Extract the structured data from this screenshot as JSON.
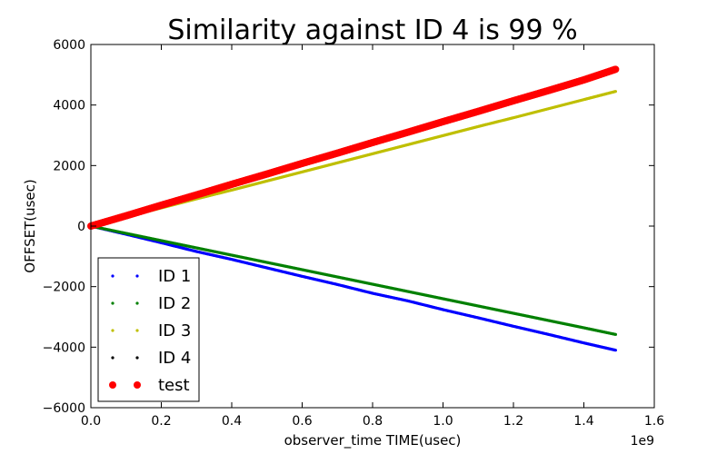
{
  "chart_data": {
    "type": "scatter",
    "title": "Similarity against ID 4 is 99 %",
    "xlabel": "observer_time TIME(usec)",
    "ylabel": "OFFSET(usec)",
    "x_offset_label": "1e9",
    "xlim": [
      0.0,
      1.6
    ],
    "ylim": [
      -6000,
      6000
    ],
    "xticks": [
      0.0,
      0.2,
      0.4,
      0.6,
      0.8,
      1.0,
      1.2,
      1.4,
      1.6
    ],
    "xtick_labels": [
      "0.0",
      "0.2",
      "0.4",
      "0.6",
      "0.8",
      "1.0",
      "1.2",
      "1.4",
      "1.6"
    ],
    "yticks": [
      -6000,
      -4000,
      -2000,
      0,
      2000,
      4000,
      6000
    ],
    "ytick_labels": [
      "−6000",
      "−4000",
      "−2000",
      "0",
      "2000",
      "4000",
      "6000"
    ],
    "grid": false,
    "legend_position": "lower-left",
    "series": [
      {
        "name": "ID 1",
        "color": "#0000ff",
        "marker": "small-dot",
        "x": [
          0.0,
          0.1,
          0.2,
          0.3,
          0.4,
          0.5,
          0.6,
          0.7,
          0.8,
          0.9,
          1.0,
          1.1,
          1.2,
          1.3,
          1.4,
          1.49
        ],
        "y": [
          0,
          -270,
          -550,
          -840,
          -1100,
          -1380,
          -1660,
          -1930,
          -2220,
          -2470,
          -2760,
          -3030,
          -3310,
          -3580,
          -3860,
          -4100
        ]
      },
      {
        "name": "ID 2",
        "color": "#008000",
        "marker": "small-dot",
        "x": [
          0.0,
          0.1,
          0.2,
          0.3,
          0.4,
          0.5,
          0.6,
          0.7,
          0.8,
          0.9,
          1.0,
          1.1,
          1.2,
          1.3,
          1.4,
          1.49
        ],
        "y": [
          0,
          -240,
          -480,
          -720,
          -960,
          -1200,
          -1440,
          -1680,
          -1920,
          -2160,
          -2400,
          -2640,
          -2880,
          -3120,
          -3360,
          -3580
        ]
      },
      {
        "name": "ID 3",
        "color": "#bfbf00",
        "marker": "small-dot",
        "x": [
          0.0,
          0.1,
          0.2,
          0.3,
          0.4,
          0.5,
          0.6,
          0.7,
          0.8,
          0.9,
          1.0,
          1.1,
          1.2,
          1.3,
          1.4,
          1.49
        ],
        "y": [
          0,
          300,
          600,
          900,
          1190,
          1490,
          1790,
          2090,
          2390,
          2690,
          2990,
          3290,
          3580,
          3880,
          4180,
          4450
        ]
      },
      {
        "name": "ID 4",
        "color": "#000000",
        "marker": "small-dot",
        "x": [
          0.0,
          0.1,
          0.2,
          0.3,
          0.4,
          0.5,
          0.6,
          0.7,
          0.8,
          0.9,
          1.0,
          1.1,
          1.2,
          1.3,
          1.4,
          1.49
        ],
        "y": [
          0,
          350,
          700,
          1050,
          1400,
          1750,
          2100,
          2450,
          2800,
          3150,
          3500,
          3850,
          4200,
          4550,
          4900,
          5240
        ]
      },
      {
        "name": "test",
        "color": "#ff0000",
        "marker": "dot",
        "x": [
          0.0,
          0.1,
          0.2,
          0.3,
          0.4,
          0.5,
          0.6,
          0.7,
          0.8,
          0.9,
          1.0,
          1.1,
          1.2,
          1.3,
          1.4,
          1.49
        ],
        "y": [
          0,
          340,
          690,
          1030,
          1380,
          1720,
          2070,
          2410,
          2760,
          3100,
          3450,
          3790,
          4140,
          4480,
          4830,
          5180
        ]
      }
    ]
  }
}
